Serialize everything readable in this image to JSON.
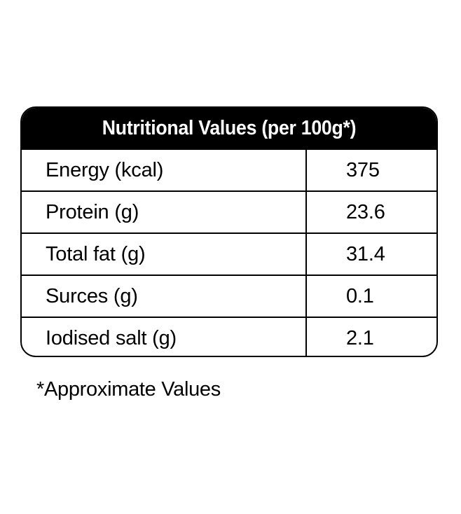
{
  "table": {
    "title": "Nutritional Values (per 100g*)",
    "rows": [
      {
        "label": "Energy (kcal)",
        "value": "375"
      },
      {
        "label": "Protein (g)",
        "value": "23.6"
      },
      {
        "label": "Total fat (g)",
        "value": "31.4"
      },
      {
        "label": "Surces (g)",
        "value": "0.1"
      },
      {
        "label": "Iodised salt (g)",
        "value": "2.1"
      }
    ]
  },
  "footnote": "*Approximate Values"
}
